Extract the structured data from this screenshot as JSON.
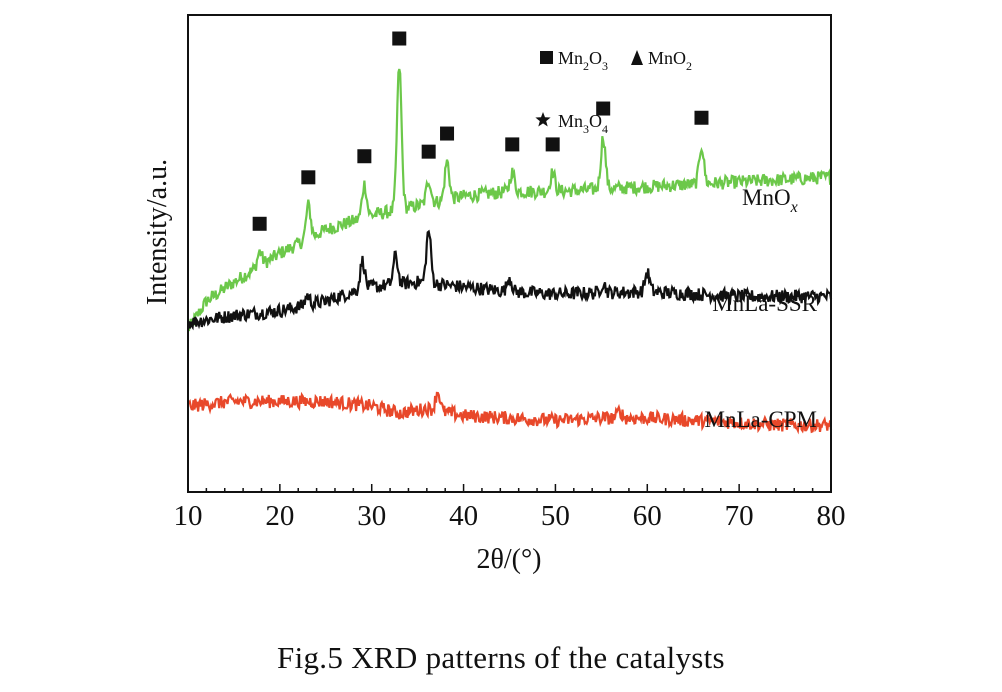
{
  "chart_data": {
    "type": "line",
    "title": "",
    "xlabel": "2θ/(°)",
    "ylabel": "Intensity/a.u.",
    "xlim": [
      10,
      80
    ],
    "xticks": [
      "10",
      "20",
      "30",
      "40",
      "50",
      "60",
      "70",
      "80"
    ],
    "yticks": [],
    "grid": false,
    "series": [
      {
        "name": "MnOx",
        "label_main": "MnO",
        "label_sub": "x",
        "color": "#6cc84a",
        "baseline": [
          [
            10,
            0.34
          ],
          [
            12,
            0.4
          ],
          [
            15,
            0.44
          ],
          [
            20,
            0.5
          ],
          [
            25,
            0.55
          ],
          [
            30,
            0.58
          ],
          [
            35,
            0.6
          ],
          [
            40,
            0.62
          ],
          [
            45,
            0.63
          ],
          [
            50,
            0.63
          ],
          [
            60,
            0.64
          ],
          [
            70,
            0.65
          ],
          [
            80,
            0.66
          ]
        ],
        "peaks": [
          [
            17.8,
            0.03
          ],
          [
            23.1,
            0.07
          ],
          [
            29.2,
            0.07
          ],
          [
            33.0,
            0.3
          ],
          [
            36.2,
            0.05
          ],
          [
            38.2,
            0.08
          ],
          [
            45.3,
            0.04
          ],
          [
            49.7,
            0.04
          ],
          [
            55.2,
            0.11
          ],
          [
            65.9,
            0.08
          ]
        ]
      },
      {
        "name": "MnLa-SSR",
        "color": "#111111",
        "baseline": [
          [
            10,
            0.355
          ],
          [
            15,
            0.37
          ],
          [
            20,
            0.38
          ],
          [
            25,
            0.4
          ],
          [
            28,
            0.42
          ],
          [
            30,
            0.43
          ],
          [
            35,
            0.44
          ],
          [
            40,
            0.43
          ],
          [
            45,
            0.42
          ],
          [
            50,
            0.415
          ],
          [
            60,
            0.42
          ],
          [
            70,
            0.41
          ],
          [
            80,
            0.41
          ]
        ],
        "peaks": [
          [
            23.0,
            0.02
          ],
          [
            29.0,
            0.06
          ],
          [
            32.6,
            0.06
          ],
          [
            36.2,
            0.11
          ],
          [
            45.0,
            0.03
          ],
          [
            55.2,
            0.02
          ],
          [
            60.0,
            0.04
          ]
        ]
      },
      {
        "name": "MnLa-CPM",
        "color": "#e8482a",
        "baseline": [
          [
            10,
            0.18
          ],
          [
            15,
            0.19
          ],
          [
            20,
            0.19
          ],
          [
            25,
            0.19
          ],
          [
            30,
            0.18
          ],
          [
            33,
            0.165
          ],
          [
            36,
            0.175
          ],
          [
            40,
            0.16
          ],
          [
            45,
            0.155
          ],
          [
            50,
            0.15
          ],
          [
            55,
            0.155
          ],
          [
            60,
            0.155
          ],
          [
            65,
            0.15
          ],
          [
            70,
            0.145
          ],
          [
            75,
            0.14
          ],
          [
            80,
            0.14
          ]
        ],
        "peaks": [
          [
            37.2,
            0.04
          ],
          [
            57.0,
            0.015
          ]
        ]
      }
    ],
    "markers": [
      {
        "x": 17.8,
        "series": "MnOx",
        "phase": "Mn2O3"
      },
      {
        "x": 23.1,
        "series": "MnOx",
        "phase": "Mn2O3"
      },
      {
        "x": 29.2,
        "series": "MnOx",
        "phase": "Mn2O3"
      },
      {
        "x": 33.0,
        "series": "MnOx",
        "phase": "Mn2O3"
      },
      {
        "x": 36.2,
        "series": "MnOx",
        "phase": "Mn2O3"
      },
      {
        "x": 38.2,
        "series": "MnOx",
        "phase": "Mn2O3"
      },
      {
        "x": 45.3,
        "series": "MnOx",
        "phase": "Mn2O3"
      },
      {
        "x": 49.7,
        "series": "MnOx",
        "phase": "Mn2O3"
      },
      {
        "x": 55.2,
        "series": "MnOx",
        "phase": "Mn2O3"
      },
      {
        "x": 65.9,
        "series": "MnOx",
        "phase": "Mn2O3"
      }
    ],
    "legend": {
      "placement": "top-right",
      "entries": [
        {
          "symbol": "square",
          "main": "Mn",
          "sub1": "2",
          "main2": "O",
          "sub2": "3"
        },
        {
          "symbol": "triangle",
          "main": "MnO",
          "sub1": "2",
          "main2": "",
          "sub2": ""
        },
        {
          "symbol": "star",
          "main": "Mn",
          "sub1": "3",
          "main2": "O",
          "sub2": "4"
        }
      ]
    }
  },
  "caption": "Fig.5    XRD patterns of the catalysts"
}
